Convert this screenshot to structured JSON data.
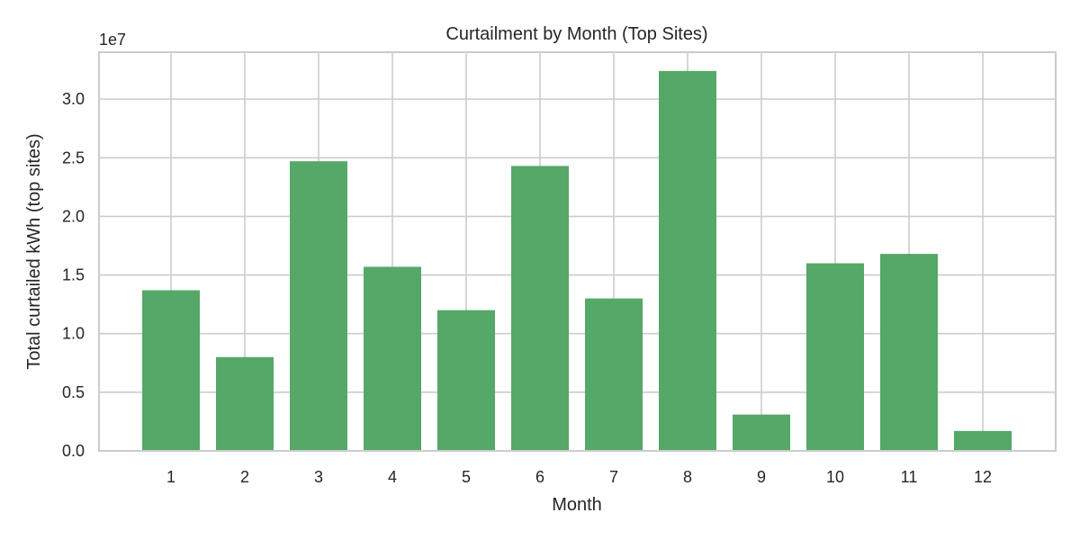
{
  "chart_data": {
    "type": "bar",
    "title": "Curtailment by Month (Top Sites)",
    "xlabel": "Month",
    "ylabel": "Total curtailed kWh (top sites)",
    "offset_text": "1e7",
    "categories": [
      "1",
      "2",
      "3",
      "4",
      "5",
      "6",
      "7",
      "8",
      "9",
      "10",
      "11",
      "12"
    ],
    "values": [
      13700000,
      8000000,
      24700000,
      15700000,
      12000000,
      24300000,
      13000000,
      32400000,
      3100000,
      16000000,
      16800000,
      1700000
    ],
    "ylim": [
      0,
      34000000
    ],
    "yticks": [
      0,
      5000000,
      10000000,
      15000000,
      20000000,
      25000000,
      30000000
    ],
    "ytick_labels": [
      "0.0",
      "0.5",
      "1.0",
      "1.5",
      "2.0",
      "2.5",
      "3.0"
    ],
    "bar_color": "#55a868",
    "grid": true,
    "legend": false
  }
}
